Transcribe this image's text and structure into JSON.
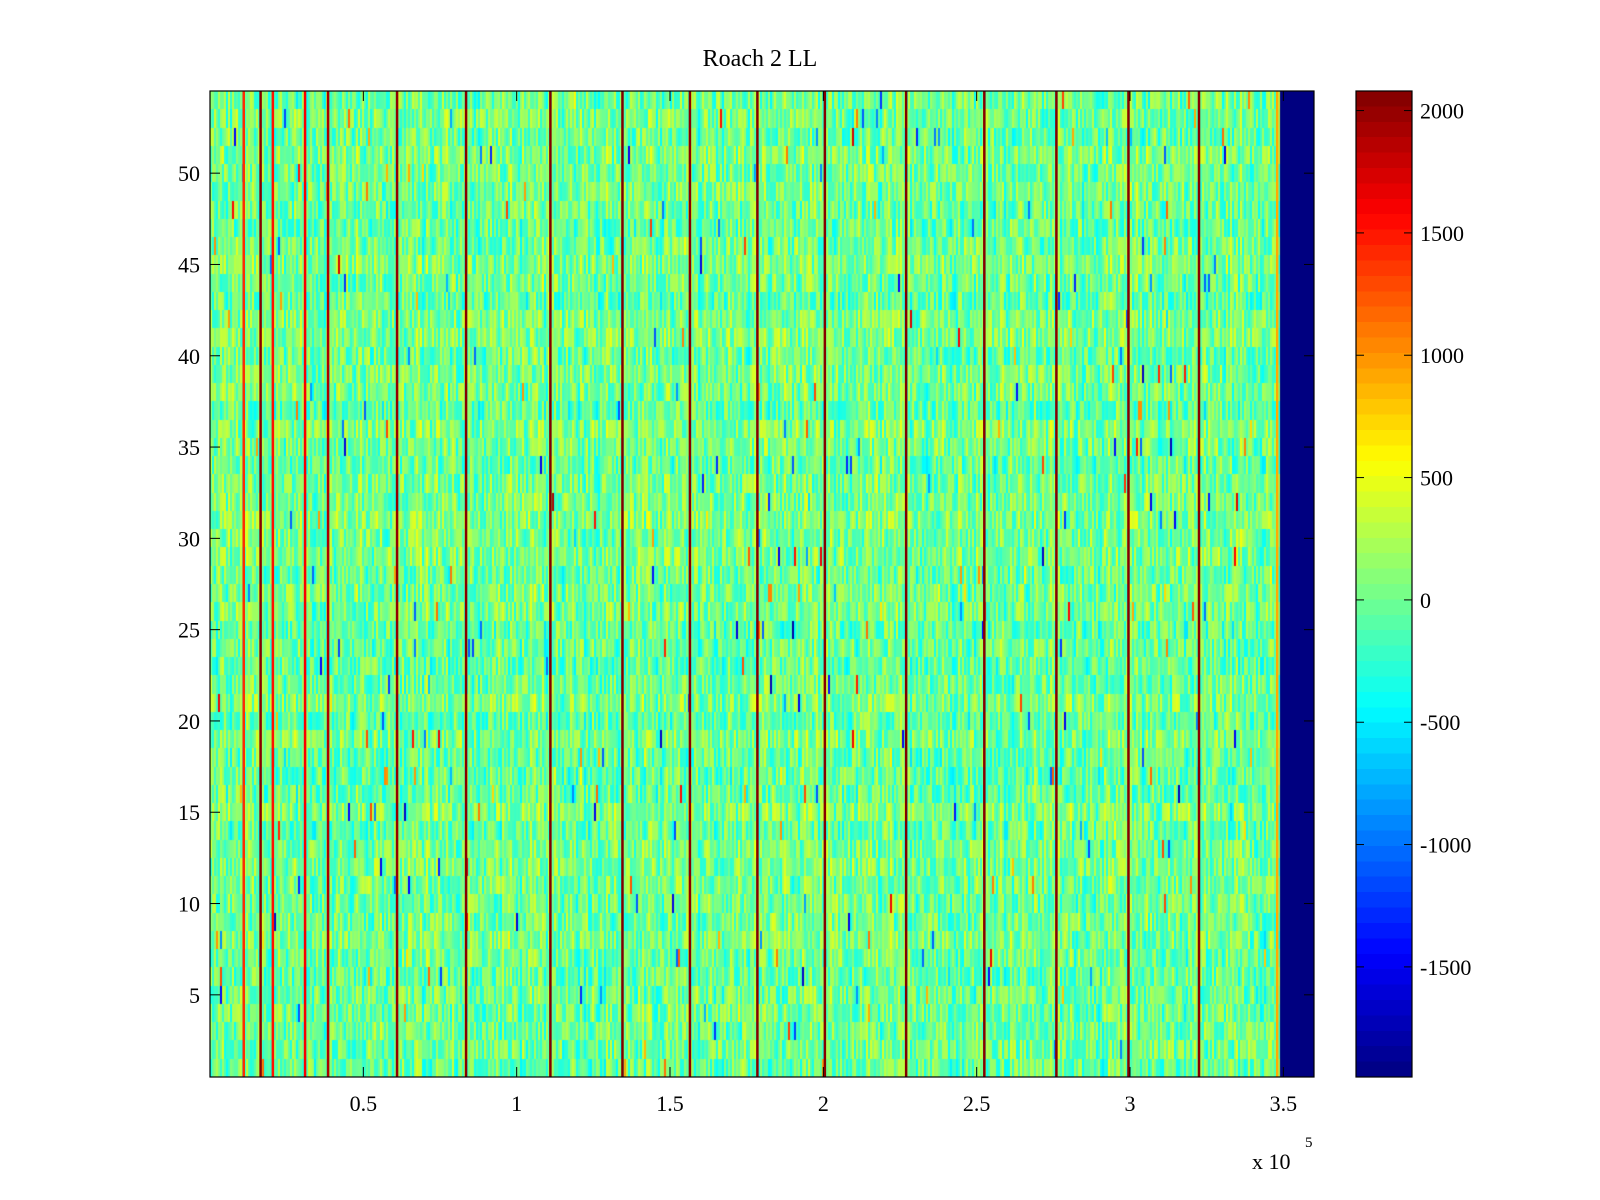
{
  "chart_data": {
    "type": "heatmap",
    "title": "Roach 2 LL",
    "xlabel": "",
    "ylabel": "",
    "x_exponent_label": "x 10",
    "x_exponent": "5",
    "xlim": [
      0,
      360000
    ],
    "ylim": [
      0.5,
      54.5
    ],
    "rows": 54,
    "x_ticks": [
      {
        "value": 50000,
        "label": "0.5"
      },
      {
        "value": 100000,
        "label": "1"
      },
      {
        "value": 150000,
        "label": "1.5"
      },
      {
        "value": 200000,
        "label": "2"
      },
      {
        "value": 250000,
        "label": "2.5"
      },
      {
        "value": 300000,
        "label": "3"
      },
      {
        "value": 350000,
        "label": "3.5"
      }
    ],
    "y_ticks": [
      {
        "value": 5,
        "label": "5"
      },
      {
        "value": 10,
        "label": "10"
      },
      {
        "value": 15,
        "label": "15"
      },
      {
        "value": 20,
        "label": "20"
      },
      {
        "value": 25,
        "label": "25"
      },
      {
        "value": 30,
        "label": "30"
      },
      {
        "value": 35,
        "label": "35"
      },
      {
        "value": 40,
        "label": "40"
      },
      {
        "value": 45,
        "label": "45"
      },
      {
        "value": 50,
        "label": "50"
      }
    ],
    "colorbar": {
      "colormap": "jet",
      "clim": [
        -1950,
        2080
      ],
      "ticks": [
        {
          "value": 2000,
          "label": "2000"
        },
        {
          "value": 1500,
          "label": "1500"
        },
        {
          "value": 1000,
          "label": "1000"
        },
        {
          "value": 500,
          "label": "500"
        },
        {
          "value": 0,
          "label": "0"
        },
        {
          "value": -500,
          "label": "-500"
        },
        {
          "value": -1000,
          "label": "-1000"
        },
        {
          "value": -1500,
          "label": "-1500"
        }
      ]
    },
    "background_value": 0,
    "noise_amplitude": 380,
    "data_end_x": 348500,
    "fill_value_after_end": -1950,
    "vertical_lines": [
      {
        "x": 11000,
        "value": 1400
      },
      {
        "x": 16500,
        "value": 2050
      },
      {
        "x": 20500,
        "value": 1500
      },
      {
        "x": 31000,
        "value": 1600
      },
      {
        "x": 38500,
        "value": 1900
      },
      {
        "x": 61000,
        "value": 2000
      },
      {
        "x": 83500,
        "value": 2050
      },
      {
        "x": 111000,
        "value": 2080
      },
      {
        "x": 134500,
        "value": 2080
      },
      {
        "x": 156500,
        "value": 2050
      },
      {
        "x": 178500,
        "value": 2050
      },
      {
        "x": 200500,
        "value": 2050
      },
      {
        "x": 227000,
        "value": 2080
      },
      {
        "x": 252500,
        "value": 2050
      },
      {
        "x": 276000,
        "value": 2050
      },
      {
        "x": 299500,
        "value": 2050
      },
      {
        "x": 322500,
        "value": 2050
      },
      {
        "x": 348000,
        "value": 900
      }
    ]
  }
}
